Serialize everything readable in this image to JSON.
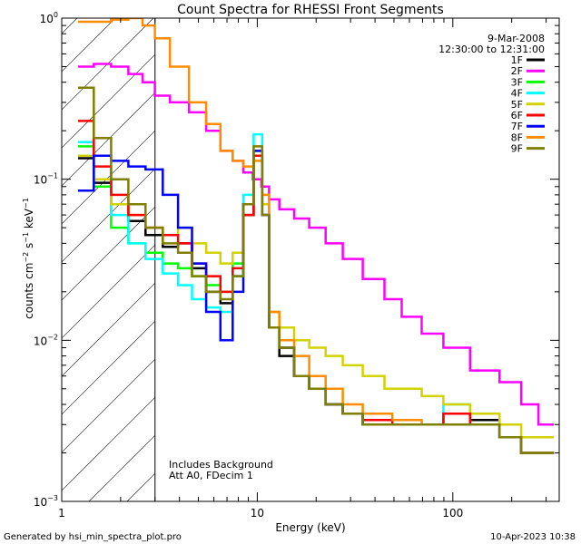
{
  "chart_data": {
    "type": "line",
    "title": "Count Spectra for RHESSI Front Segments",
    "xlabel": "Energy (keV)",
    "ylabel_parts": {
      "a": "counts cm",
      "a_sup": "−2",
      "b": " s",
      "b_sup": "−1",
      "c": " keV",
      "c_sup": "−1"
    },
    "xscale": "log",
    "yscale": "log",
    "xlim": [
      1,
      350
    ],
    "ylim": [
      0.001,
      1.0
    ],
    "x_ticks": [
      {
        "value": 1,
        "label": "1"
      },
      {
        "value": 10,
        "label": "10"
      },
      {
        "value": 100,
        "label": "100"
      }
    ],
    "y_ticks": [
      {
        "value": 0.001,
        "base": "10",
        "exp": "−3"
      },
      {
        "value": 0.01,
        "base": "10",
        "exp": "−2"
      },
      {
        "value": 0.1,
        "base": "10",
        "exp": "−1"
      },
      {
        "value": 1.0,
        "base": "10",
        "exp": "0"
      }
    ],
    "hatched_region_upper_kev": 3.0,
    "legend": {
      "placement": "top-right",
      "date": "9-Mar-2008",
      "time_range": "12:30:00 to 12:31:00"
    },
    "annotation_lines": [
      "Includes Background",
      "Att A0, FDecim 1"
    ],
    "footer_left": "Generated by hsi_min_spectra_plot.pro",
    "footer_right": "10-Apr-2023 10:38",
    "series": [
      {
        "name": "1F",
        "color": "#000000",
        "points": [
          [
            1.33,
            0.135
          ],
          [
            1.6,
            0.095
          ],
          [
            2.0,
            0.07
          ],
          [
            2.4,
            0.055
          ],
          [
            3.0,
            0.045
          ],
          [
            3.6,
            0.038
          ],
          [
            4.3,
            0.04
          ],
          [
            5.0,
            0.028
          ],
          [
            6.0,
            0.02
          ],
          [
            7.0,
            0.017
          ],
          [
            8.0,
            0.025
          ],
          [
            9.0,
            0.06
          ],
          [
            10.2,
            0.14
          ],
          [
            11.0,
            0.06
          ],
          [
            12,
            0.012
          ],
          [
            14,
            0.008
          ],
          [
            17,
            0.006
          ],
          [
            20,
            0.005
          ],
          [
            25,
            0.004
          ],
          [
            30,
            0.0035
          ],
          [
            40,
            0.003
          ],
          [
            60,
            0.003
          ],
          [
            80,
            0.003
          ],
          [
            100,
            0.0035
          ],
          [
            150,
            0.0032
          ],
          [
            200,
            0.0025
          ],
          [
            250,
            0.002
          ],
          [
            300,
            0.002
          ]
        ]
      },
      {
        "name": "2F",
        "color": "#ff00ff",
        "points": [
          [
            1.33,
            0.5
          ],
          [
            1.6,
            0.52
          ],
          [
            2.0,
            0.5
          ],
          [
            2.4,
            0.45
          ],
          [
            2.8,
            0.4
          ],
          [
            3.2,
            0.33
          ],
          [
            4.0,
            0.3
          ],
          [
            5.0,
            0.26
          ],
          [
            6.0,
            0.2
          ],
          [
            7.0,
            0.15
          ],
          [
            8.0,
            0.13
          ],
          [
            9.0,
            0.11
          ],
          [
            10.0,
            0.1
          ],
          [
            11.0,
            0.09
          ],
          [
            12,
            0.075
          ],
          [
            14,
            0.065
          ],
          [
            17,
            0.057
          ],
          [
            20,
            0.05
          ],
          [
            25,
            0.04
          ],
          [
            30,
            0.032
          ],
          [
            40,
            0.024
          ],
          [
            50,
            0.018
          ],
          [
            60,
            0.014
          ],
          [
            80,
            0.011
          ],
          [
            100,
            0.009
          ],
          [
            150,
            0.0065
          ],
          [
            200,
            0.0055
          ],
          [
            250,
            0.004
          ],
          [
            300,
            0.003
          ]
        ]
      },
      {
        "name": "3F",
        "color": "#00ff00",
        "points": [
          [
            1.33,
            0.16
          ],
          [
            1.6,
            0.09
          ],
          [
            2.0,
            0.05
          ],
          [
            2.4,
            0.04
          ],
          [
            3.0,
            0.035
          ],
          [
            3.6,
            0.03
          ],
          [
            4.3,
            0.028
          ],
          [
            5.0,
            0.025
          ],
          [
            6.0,
            0.022
          ],
          [
            7.0,
            0.02
          ],
          [
            8.0,
            0.03
          ],
          [
            9.0,
            0.07
          ],
          [
            10.2,
            0.15
          ],
          [
            11.0,
            0.06
          ],
          [
            12,
            0.012
          ],
          [
            14,
            0.009
          ],
          [
            17,
            0.006
          ],
          [
            20,
            0.005
          ],
          [
            25,
            0.004
          ],
          [
            30,
            0.0035
          ],
          [
            40,
            0.003
          ],
          [
            60,
            0.003
          ],
          [
            80,
            0.003
          ],
          [
            100,
            0.003
          ],
          [
            150,
            0.003
          ],
          [
            200,
            0.0025
          ],
          [
            250,
            0.002
          ],
          [
            300,
            0.002
          ]
        ]
      },
      {
        "name": "4F",
        "color": "#00ffff",
        "points": [
          [
            1.33,
            0.17
          ],
          [
            1.6,
            0.1
          ],
          [
            2.0,
            0.06
          ],
          [
            2.4,
            0.04
          ],
          [
            3.0,
            0.032
          ],
          [
            3.6,
            0.026
          ],
          [
            4.3,
            0.022
          ],
          [
            5.0,
            0.018
          ],
          [
            6.0,
            0.016
          ],
          [
            7.0,
            0.015
          ],
          [
            8.0,
            0.025
          ],
          [
            9.0,
            0.08
          ],
          [
            10.2,
            0.19
          ],
          [
            11.0,
            0.06
          ],
          [
            12,
            0.012
          ],
          [
            14,
            0.009
          ],
          [
            17,
            0.006
          ],
          [
            20,
            0.005
          ],
          [
            25,
            0.004
          ],
          [
            30,
            0.0035
          ],
          [
            40,
            0.003
          ],
          [
            60,
            0.003
          ],
          [
            80,
            0.003
          ],
          [
            100,
            0.004
          ],
          [
            150,
            0.003
          ],
          [
            200,
            0.0025
          ],
          [
            250,
            0.002
          ],
          [
            300,
            0.002
          ]
        ]
      },
      {
        "name": "5F",
        "color": "#d2d200",
        "points": [
          [
            1.33,
            0.14
          ],
          [
            1.6,
            0.1
          ],
          [
            2.0,
            0.07
          ],
          [
            2.4,
            0.06
          ],
          [
            3.0,
            0.05
          ],
          [
            3.6,
            0.045
          ],
          [
            4.3,
            0.05
          ],
          [
            5.0,
            0.04
          ],
          [
            6.0,
            0.035
          ],
          [
            7.0,
            0.03
          ],
          [
            8.0,
            0.035
          ],
          [
            9.0,
            0.07
          ],
          [
            10.2,
            0.15
          ],
          [
            11.0,
            0.07
          ],
          [
            12,
            0.015
          ],
          [
            14,
            0.012
          ],
          [
            17,
            0.01
          ],
          [
            20,
            0.009
          ],
          [
            25,
            0.008
          ],
          [
            30,
            0.007
          ],
          [
            40,
            0.006
          ],
          [
            50,
            0.005
          ],
          [
            60,
            0.005
          ],
          [
            80,
            0.0045
          ],
          [
            100,
            0.004
          ],
          [
            150,
            0.0035
          ],
          [
            200,
            0.003
          ],
          [
            250,
            0.0025
          ],
          [
            300,
            0.0025
          ]
        ]
      },
      {
        "name": "6F",
        "color": "#ff0000",
        "points": [
          [
            1.33,
            0.23
          ],
          [
            1.6,
            0.12
          ],
          [
            2.0,
            0.08
          ],
          [
            2.4,
            0.06
          ],
          [
            3.0,
            0.05
          ],
          [
            3.6,
            0.045
          ],
          [
            4.3,
            0.04
          ],
          [
            5.0,
            0.03
          ],
          [
            6.0,
            0.025
          ],
          [
            7.0,
            0.02
          ],
          [
            8.0,
            0.028
          ],
          [
            9.0,
            0.06
          ],
          [
            10.2,
            0.14
          ],
          [
            11.0,
            0.06
          ],
          [
            12,
            0.012
          ],
          [
            14,
            0.009
          ],
          [
            17,
            0.006
          ],
          [
            20,
            0.005
          ],
          [
            25,
            0.004
          ],
          [
            30,
            0.0035
          ],
          [
            40,
            0.0032
          ],
          [
            60,
            0.003
          ],
          [
            80,
            0.003
          ],
          [
            100,
            0.0035
          ],
          [
            150,
            0.003
          ],
          [
            200,
            0.0025
          ],
          [
            250,
            0.002
          ],
          [
            300,
            0.002
          ]
        ]
      },
      {
        "name": "7F",
        "color": "#0000ff",
        "points": [
          [
            1.33,
            0.085
          ],
          [
            1.6,
            0.14
          ],
          [
            2.0,
            0.13
          ],
          [
            2.4,
            0.12
          ],
          [
            3.0,
            0.115
          ],
          [
            3.6,
            0.08
          ],
          [
            4.3,
            0.05
          ],
          [
            5.0,
            0.03
          ],
          [
            6.0,
            0.015
          ],
          [
            7.0,
            0.01
          ],
          [
            8.0,
            0.02
          ],
          [
            9.0,
            0.07
          ],
          [
            10.2,
            0.15
          ],
          [
            11.0,
            0.06
          ],
          [
            12,
            0.012
          ],
          [
            14,
            0.009
          ],
          [
            17,
            0.006
          ],
          [
            20,
            0.005
          ],
          [
            25,
            0.004
          ],
          [
            30,
            0.0035
          ],
          [
            40,
            0.003
          ],
          [
            60,
            0.003
          ],
          [
            80,
            0.003
          ],
          [
            100,
            0.003
          ],
          [
            150,
            0.003
          ],
          [
            200,
            0.0025
          ],
          [
            250,
            0.002
          ],
          [
            300,
            0.002
          ]
        ]
      },
      {
        "name": "8F",
        "color": "#ff8c00",
        "points": [
          [
            1.33,
            0.95
          ],
          [
            1.6,
            0.95
          ],
          [
            2.0,
            0.98
          ],
          [
            2.4,
            1.0
          ],
          [
            2.8,
            0.9
          ],
          [
            3.2,
            0.75
          ],
          [
            4.0,
            0.5
          ],
          [
            5.0,
            0.3
          ],
          [
            6.0,
            0.22
          ],
          [
            7.0,
            0.15
          ],
          [
            8.0,
            0.13
          ],
          [
            9.0,
            0.12
          ],
          [
            10.2,
            0.13
          ],
          [
            11.0,
            0.08
          ],
          [
            12,
            0.015
          ],
          [
            14,
            0.01
          ],
          [
            17,
            0.008
          ],
          [
            20,
            0.006
          ],
          [
            25,
            0.005
          ],
          [
            30,
            0.004
          ],
          [
            40,
            0.0035
          ],
          [
            60,
            0.0032
          ],
          [
            80,
            0.003
          ],
          [
            100,
            0.003
          ],
          [
            150,
            0.003
          ],
          [
            200,
            0.0025
          ],
          [
            250,
            0.002
          ],
          [
            300,
            0.002
          ]
        ]
      },
      {
        "name": "9F",
        "color": "#808000",
        "points": [
          [
            1.33,
            0.37
          ],
          [
            1.6,
            0.18
          ],
          [
            2.0,
            0.1
          ],
          [
            2.4,
            0.07
          ],
          [
            3.0,
            0.05
          ],
          [
            3.6,
            0.04
          ],
          [
            4.3,
            0.035
          ],
          [
            5.0,
            0.025
          ],
          [
            6.0,
            0.02
          ],
          [
            7.0,
            0.018
          ],
          [
            8.0,
            0.025
          ],
          [
            9.0,
            0.07
          ],
          [
            10.2,
            0.16
          ],
          [
            11.0,
            0.06
          ],
          [
            12,
            0.012
          ],
          [
            14,
            0.009
          ],
          [
            17,
            0.006
          ],
          [
            20,
            0.005
          ],
          [
            25,
            0.004
          ],
          [
            30,
            0.0035
          ],
          [
            40,
            0.003
          ],
          [
            60,
            0.003
          ],
          [
            80,
            0.003
          ],
          [
            100,
            0.003
          ],
          [
            150,
            0.003
          ],
          [
            200,
            0.0025
          ],
          [
            250,
            0.002
          ],
          [
            300,
            0.002
          ]
        ]
      }
    ]
  }
}
